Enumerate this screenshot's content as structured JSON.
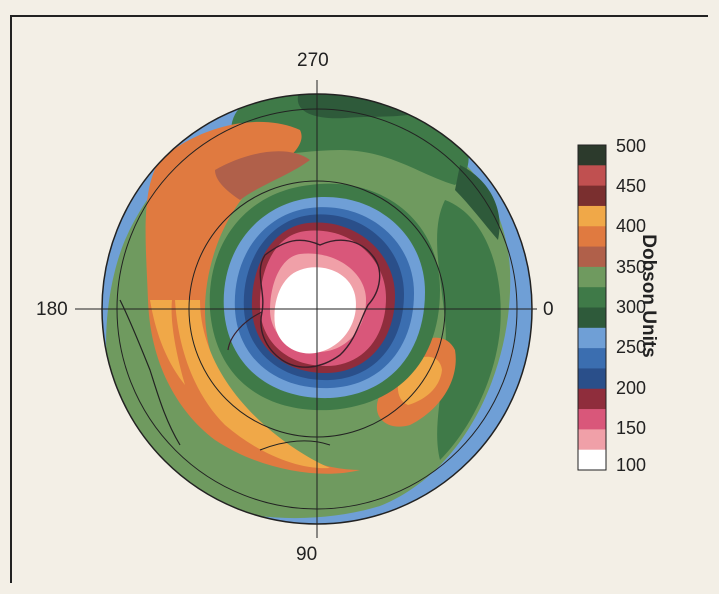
{
  "map": {
    "labels": {
      "top": "270",
      "left": "180",
      "right": "0",
      "bottom": "90"
    },
    "colors": {
      "c100": "#ffffff",
      "c125": "#f0a0a8",
      "c150": "#d9577a",
      "c175": "#8f2d3c",
      "c200": "#2a4f8a",
      "c225": "#3b6eb0",
      "c250": "#6f9fd6",
      "c275": "#2e5a3a",
      "c300": "#3f7a48",
      "c325": "#6f9a5f",
      "c350": "#b0604a",
      "c375": "#e07a40",
      "c400": "#f0a848",
      "c425": "#7a2f2f",
      "c450": "#c05050",
      "c475": "#2c3a2c"
    }
  },
  "legend": {
    "title": "Dobson Units",
    "labels": [
      "500",
      "450",
      "400",
      "350",
      "300",
      "250",
      "200",
      "150",
      "100"
    ],
    "swatches": [
      "#2c3a2c",
      "#c05050",
      "#7a2f2f",
      "#f0a848",
      "#e07a40",
      "#b0604a",
      "#6f9a5f",
      "#3f7a48",
      "#2e5a3a",
      "#6f9fd6",
      "#3b6eb0",
      "#2a4f8a",
      "#8f2d3c",
      "#d9577a",
      "#f0a0a8",
      "#ffffff"
    ]
  }
}
